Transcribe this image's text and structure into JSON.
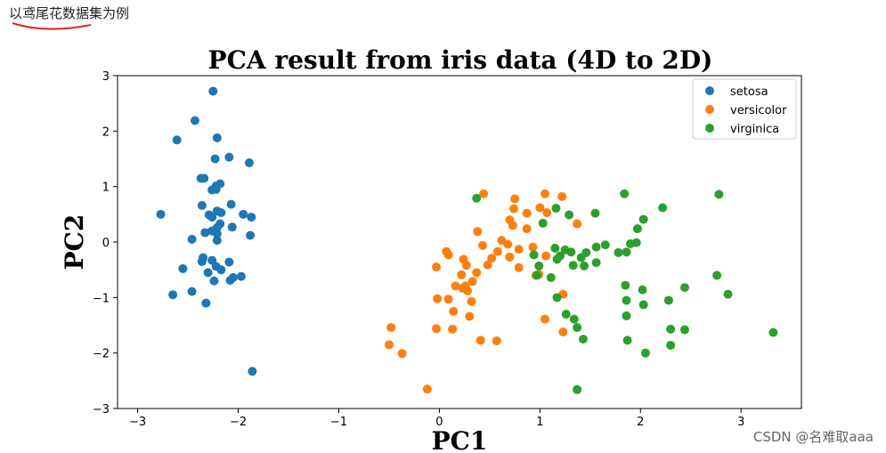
{
  "caption": "以鸢尾花数据集为例",
  "watermark": "CSDN @名难取aaa",
  "colors": {
    "setosa": "#1f77b4",
    "versicolor": "#ff7f0e",
    "virginica": "#2ca02c",
    "underline": "#d62728"
  },
  "chart_data": {
    "type": "scatter",
    "title": "PCA result from iris data (4D to 2D)",
    "xlabel": "PC1",
    "ylabel": "PC2",
    "xlim": [
      -3.2,
      3.6
    ],
    "ylim": [
      -3,
      3
    ],
    "xticks": [
      -3,
      -2,
      -1,
      0,
      1,
      2,
      3
    ],
    "yticks": [
      -3,
      -2,
      -1,
      0,
      1,
      2,
      3
    ],
    "legend_position": "top-right",
    "series": [
      {
        "name": "setosa",
        "points": [
          [
            -2.25,
            2.72
          ],
          [
            -2.43,
            2.19
          ],
          [
            -2.61,
            1.84
          ],
          [
            -2.21,
            1.88
          ],
          [
            -2.09,
            1.53
          ],
          [
            -2.23,
            1.5
          ],
          [
            -1.89,
            1.43
          ],
          [
            -2.37,
            1.15
          ],
          [
            -2.34,
            1.15
          ],
          [
            -2.22,
            1.01
          ],
          [
            -2.22,
            0.95
          ],
          [
            -2.26,
            0.94
          ],
          [
            -2.18,
            1.05
          ],
          [
            -2.36,
            0.66
          ],
          [
            -2.07,
            0.68
          ],
          [
            -2.21,
            0.56
          ],
          [
            -2.29,
            0.49
          ],
          [
            -2.26,
            0.45
          ],
          [
            -2.17,
            0.53
          ],
          [
            -2.18,
            0.33
          ],
          [
            -2.77,
            0.5
          ],
          [
            -1.95,
            0.5
          ],
          [
            -1.87,
            0.45
          ],
          [
            -1.88,
            0.12
          ],
          [
            -2.06,
            0.27
          ],
          [
            -2.33,
            0.17
          ],
          [
            -2.21,
            0.26
          ],
          [
            -2.21,
            0.15
          ],
          [
            -2.46,
            0.05
          ],
          [
            -2.21,
            0.03
          ],
          [
            -2.26,
            0.2
          ],
          [
            -2.35,
            -0.28
          ],
          [
            -2.36,
            -0.35
          ],
          [
            -2.26,
            -0.33
          ],
          [
            -2.09,
            -0.36
          ],
          [
            -2.22,
            -0.44
          ],
          [
            -2.17,
            -0.5
          ],
          [
            -2.55,
            -0.48
          ],
          [
            -2.3,
            -0.55
          ],
          [
            -2.05,
            -0.64
          ],
          [
            -2.08,
            -0.69
          ],
          [
            -1.97,
            -0.62
          ],
          [
            -2.24,
            -0.7
          ],
          [
            -2.46,
            -0.89
          ],
          [
            -2.65,
            -0.95
          ],
          [
            -2.32,
            -1.1
          ],
          [
            -1.86,
            -2.33
          ]
        ]
      },
      {
        "name": "versicolor",
        "points": [
          [
            0.44,
            0.87
          ],
          [
            1.05,
            0.87
          ],
          [
            1.22,
            0.82
          ],
          [
            0.75,
            0.78
          ],
          [
            1.0,
            0.62
          ],
          [
            0.74,
            0.6
          ],
          [
            1.07,
            0.53
          ],
          [
            0.7,
            0.4
          ],
          [
            0.87,
            0.52
          ],
          [
            0.73,
            0.3
          ],
          [
            1.37,
            0.33
          ],
          [
            0.87,
            0.24
          ],
          [
            0.38,
            0.19
          ],
          [
            0.62,
            0.03
          ],
          [
            0.68,
            -0.04
          ],
          [
            0.43,
            -0.06
          ],
          [
            0.79,
            -0.13
          ],
          [
            0.58,
            -0.17
          ],
          [
            0.7,
            -0.27
          ],
          [
            0.93,
            -0.09
          ],
          [
            0.07,
            -0.17
          ],
          [
            0.09,
            -0.23
          ],
          [
            0.52,
            -0.29
          ],
          [
            0.48,
            -0.41
          ],
          [
            0.24,
            -0.31
          ],
          [
            0.27,
            -0.42
          ],
          [
            0.22,
            -0.59
          ],
          [
            1.06,
            -0.25
          ],
          [
            0.79,
            -0.46
          ],
          [
            0.99,
            -0.58
          ],
          [
            0.96,
            -0.6
          ],
          [
            -0.03,
            -0.45
          ],
          [
            0.37,
            -0.55
          ],
          [
            0.33,
            -0.71
          ],
          [
            0.26,
            -0.79
          ],
          [
            0.16,
            -0.79
          ],
          [
            0.23,
            -0.83
          ],
          [
            0.28,
            -0.88
          ],
          [
            -0.02,
            -1.02
          ],
          [
            0.09,
            -1.03
          ],
          [
            0.32,
            -1.07
          ],
          [
            0.14,
            -1.25
          ],
          [
            0.3,
            -1.34
          ],
          [
            1.23,
            -0.94
          ],
          [
            1.05,
            -1.39
          ],
          [
            1.23,
            -1.62
          ],
          [
            -0.03,
            -1.56
          ],
          [
            0.13,
            -1.57
          ],
          [
            -0.48,
            -1.54
          ],
          [
            0.41,
            -1.77
          ],
          [
            0.57,
            -1.78
          ],
          [
            -0.5,
            -1.85
          ],
          [
            -0.37,
            -2.01
          ],
          [
            -0.12,
            -2.65
          ]
        ]
      },
      {
        "name": "virginica",
        "points": [
          [
            0.37,
            0.79
          ],
          [
            1.84,
            0.87
          ],
          [
            2.78,
            0.86
          ],
          [
            1.16,
            0.61
          ],
          [
            2.22,
            0.62
          ],
          [
            1.55,
            0.52
          ],
          [
            1.29,
            0.49
          ],
          [
            2.03,
            0.41
          ],
          [
            1.03,
            0.34
          ],
          [
            1.97,
            0.24
          ],
          [
            1.96,
            -0.01
          ],
          [
            1.9,
            -0.03
          ],
          [
            1.65,
            -0.05
          ],
          [
            1.56,
            -0.09
          ],
          [
            1.15,
            -0.11
          ],
          [
            1.25,
            -0.14
          ],
          [
            1.31,
            -0.18
          ],
          [
            1.86,
            -0.18
          ],
          [
            1.46,
            -0.19
          ],
          [
            1.78,
            -0.19
          ],
          [
            1.41,
            -0.28
          ],
          [
            1.17,
            -0.31
          ],
          [
            0.94,
            -0.23
          ],
          [
            1.2,
            -0.25
          ],
          [
            0.99,
            -0.43
          ],
          [
            1.33,
            -0.42
          ],
          [
            1.44,
            -0.43
          ],
          [
            1.56,
            -0.37
          ],
          [
            0.97,
            -0.6
          ],
          [
            1.11,
            -0.64
          ],
          [
            2.76,
            -0.6
          ],
          [
            2.87,
            -0.94
          ],
          [
            1.85,
            -0.78
          ],
          [
            2.02,
            -0.86
          ],
          [
            2.44,
            -0.82
          ],
          [
            1.86,
            -1.05
          ],
          [
            2.28,
            -1.05
          ],
          [
            2.03,
            -1.13
          ],
          [
            1.17,
            -1.0
          ],
          [
            1.86,
            -1.33
          ],
          [
            1.26,
            -1.3
          ],
          [
            1.34,
            -1.39
          ],
          [
            1.37,
            -1.54
          ],
          [
            2.3,
            -1.57
          ],
          [
            2.44,
            -1.58
          ],
          [
            1.43,
            -1.75
          ],
          [
            1.87,
            -1.77
          ],
          [
            2.3,
            -1.86
          ],
          [
            2.05,
            -2.0
          ],
          [
            3.32,
            -1.63
          ],
          [
            1.37,
            -2.66
          ]
        ]
      }
    ]
  }
}
